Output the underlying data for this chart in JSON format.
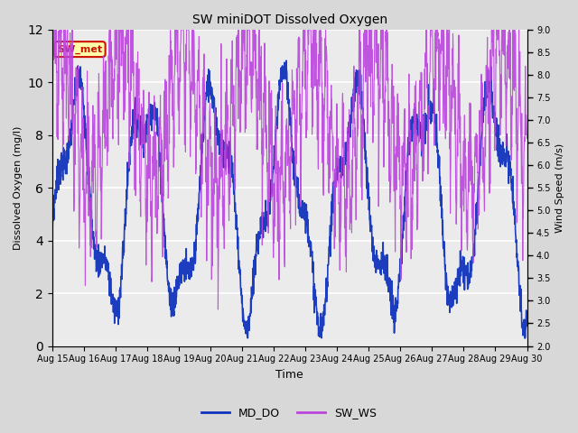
{
  "title": "SW miniDOT Dissolved Oxygen",
  "xlabel": "Time",
  "ylabel_left": "Dissolved Oxygen (mg/l)",
  "ylabel_right": "Wind Speed (m/s)",
  "ylim_left": [
    0,
    12
  ],
  "ylim_right": [
    2.0,
    9.0
  ],
  "yticks_left": [
    0,
    2,
    4,
    6,
    8,
    10,
    12
  ],
  "yticks_right": [
    2.0,
    2.5,
    3.0,
    3.5,
    4.0,
    4.5,
    5.0,
    5.5,
    6.0,
    6.5,
    7.0,
    7.5,
    8.0,
    8.5,
    9.0
  ],
  "xtick_labels": [
    "Aug 15",
    "Aug 16",
    "Aug 17",
    "Aug 18",
    "Aug 19",
    "Aug 20",
    "Aug 21",
    "Aug 22",
    "Aug 23",
    "Aug 24",
    "Aug 25",
    "Aug 26",
    "Aug 27",
    "Aug 28",
    "Aug 29",
    "Aug 30"
  ],
  "color_DO": "#1133bb",
  "color_WS": "#bb44dd",
  "legend_labels": [
    "MD_DO",
    "SW_WS"
  ],
  "annotation_text": "SW_met",
  "annotation_color": "#cc1100",
  "annotation_bg": "#ffffaa",
  "bg_color": "#d8d8d8",
  "plot_bg": "#ebebeb",
  "grid_color": "#ffffff",
  "seed": 7,
  "n_points": 2000
}
